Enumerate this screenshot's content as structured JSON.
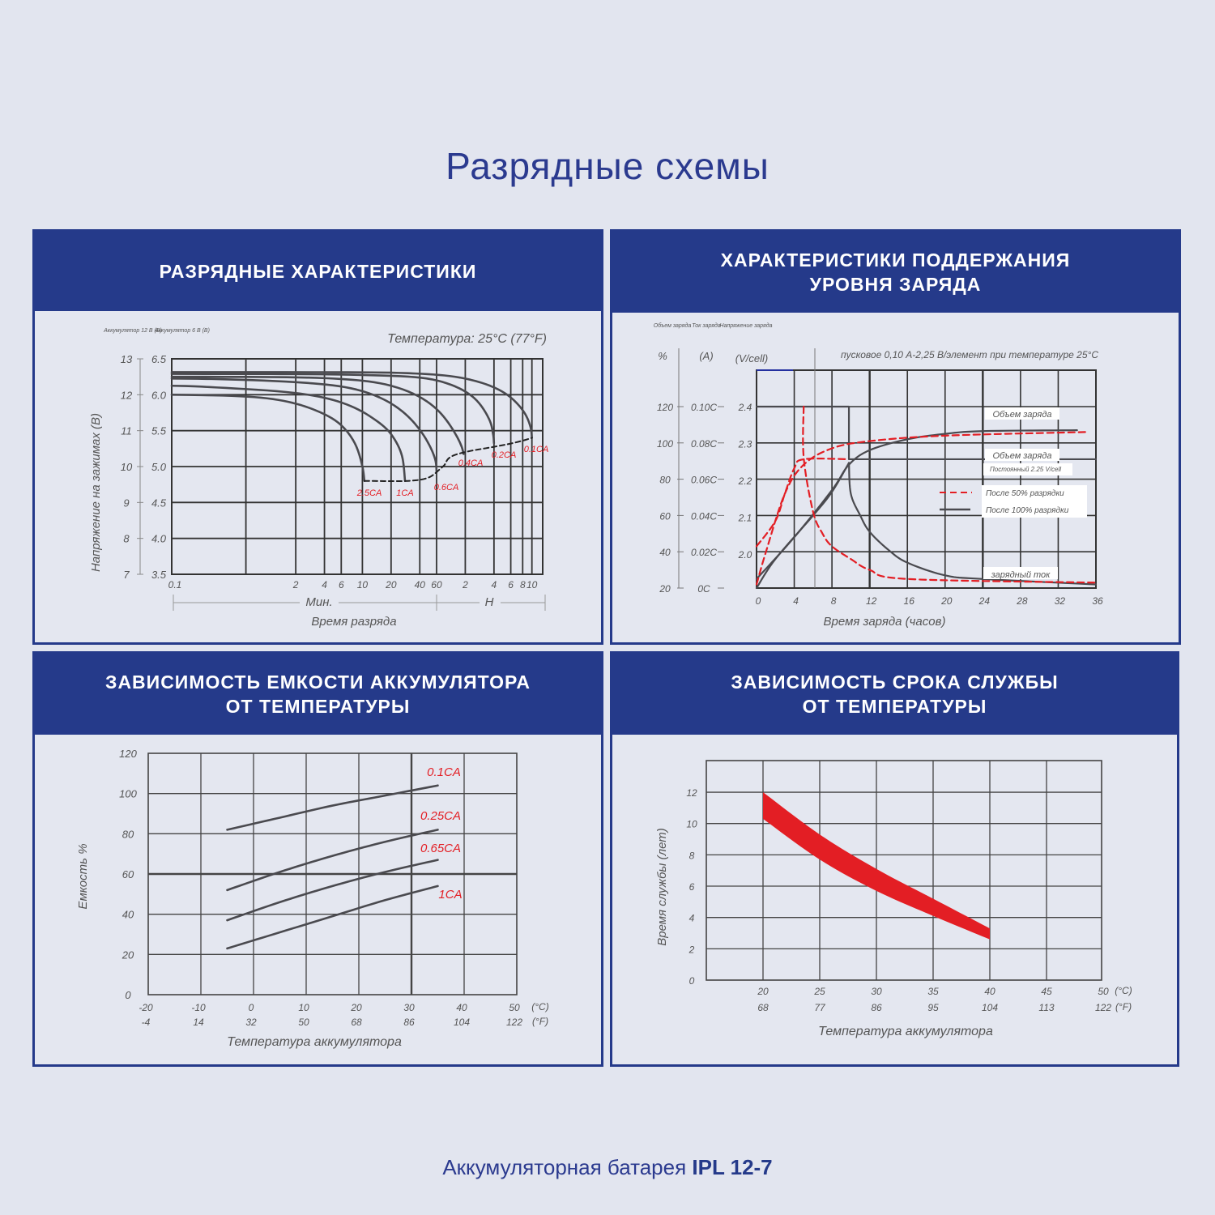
{
  "page_title": "Разрядные схемы",
  "footer": {
    "text": "Аккумуляторная батарея ",
    "model": "IPL 12-7"
  },
  "colors": {
    "brand": "#253a8a",
    "accent_red": "#e31e24",
    "line": "#4a4a4f",
    "background": "#e2e5ef"
  },
  "panels": [
    {
      "title": "РАЗРЯДНЫЕ ХАРАКТЕРИСТИКИ"
    },
    {
      "title": "ХАРАКТЕРИСТИКИ ПОДДЕРЖАНИЯ\nУРОВНЯ ЗАРЯДА"
    },
    {
      "title": "ЗАВИСИМОСТЬ ЕМКОСТИ АККУМУЛЯТОРА\nОТ ТЕМПЕРАТУРЫ"
    },
    {
      "title": "ЗАВИСИМОСТЬ СРОКА СЛУЖБЫ\nОТ ТЕМПЕРАТУРЫ"
    }
  ],
  "chart_data": [
    {
      "type": "line",
      "axis_headers": [
        "Аккумулятор 12 В (В)",
        "Аккумулятор 6 В (В)"
      ],
      "annotation": "Температура: 25°C (77°F)",
      "ylabel": "Напряжение на зажимах (В)",
      "xlabel": "Время разряда",
      "x_scale": "log",
      "x_unit_groups": [
        "Мин.",
        "H"
      ],
      "xlim_minutes": [
        0.1,
        780
      ],
      "x_ticks": [
        {
          "label": "0.1",
          "minutes": 0.1
        },
        {
          "label": "2",
          "minutes": 2
        },
        {
          "label": "4",
          "minutes": 4
        },
        {
          "label": "6",
          "minutes": 6
        },
        {
          "label": "10",
          "minutes": 10
        },
        {
          "label": "20",
          "minutes": 20
        },
        {
          "label": "40",
          "minutes": 40
        },
        {
          "label": "60",
          "minutes": 60
        },
        {
          "label": "2",
          "minutes": 120
        },
        {
          "label": "4",
          "minutes": 240
        },
        {
          "label": "6",
          "minutes": 360
        },
        {
          "label": "8",
          "minutes": 480
        },
        {
          "label": "10",
          "minutes": 600
        }
      ],
      "y_ticks_12v": [
        "13",
        "12",
        "11",
        "10",
        "9",
        "8",
        "7"
      ],
      "y_ticks_6v": [
        "6.5",
        "6.0",
        "5.5",
        "5.0",
        "4.5",
        "4.0",
        "3.5"
      ],
      "ylim": [
        7,
        13
      ],
      "grid": true,
      "series": [
        {
          "name": "2.5CA",
          "points": [
            [
              0.1,
              12.0
            ],
            [
              1,
              11.9
            ],
            [
              3,
              11.6
            ],
            [
              6,
              11.15
            ],
            [
              8.5,
              10.6
            ],
            [
              10,
              10.0
            ],
            [
              10.5,
              9.6
            ]
          ]
        },
        {
          "name": "1CA",
          "points": [
            [
              0.1,
              12.25
            ],
            [
              1,
              12.12
            ],
            [
              5,
              11.85
            ],
            [
              12,
              11.4
            ],
            [
              20,
              10.9
            ],
            [
              26,
              10.3
            ],
            [
              28,
              9.6
            ]
          ]
        },
        {
          "name": "0.6CA",
          "points": [
            [
              0.1,
              12.45
            ],
            [
              2,
              12.35
            ],
            [
              10,
              12.1
            ],
            [
              30,
              11.4
            ],
            [
              48,
              10.7
            ],
            [
              58,
              10.2
            ],
            [
              60,
              9.85
            ]
          ]
        },
        {
          "name": "0.4CA",
          "points": [
            [
              0.1,
              12.5
            ],
            [
              5,
              12.45
            ],
            [
              20,
              12.25
            ],
            [
              60,
              11.6
            ],
            [
              95,
              10.9
            ],
            [
              110,
              10.55
            ],
            [
              115,
              10.35
            ]
          ]
        },
        {
          "name": "0.2CA",
          "points": [
            [
              0.1,
              12.58
            ],
            [
              10,
              12.55
            ],
            [
              60,
              12.4
            ],
            [
              150,
              11.9
            ],
            [
              215,
              11.3
            ],
            [
              235,
              10.9
            ],
            [
              240,
              10.65
            ]
          ]
        },
        {
          "name": "0.1CA",
          "points": [
            [
              0.1,
              12.63
            ],
            [
              30,
              12.6
            ],
            [
              120,
              12.45
            ],
            [
              330,
              12.0
            ],
            [
              500,
              11.5
            ],
            [
              580,
              11.1
            ],
            [
              600,
              10.8
            ]
          ]
        }
      ],
      "cutoff_dashed": [
        [
          10.5,
          9.6
        ],
        [
          30,
          9.6
        ],
        [
          50,
          9.7
        ],
        [
          70,
          10.0
        ],
        [
          100,
          10.35
        ],
        [
          240,
          10.55
        ],
        [
          600,
          10.8
        ]
      ]
    },
    {
      "type": "line",
      "axis_headers": [
        "Объем заряда",
        "Ток заряда",
        "Напряжение заряда"
      ],
      "axis_units": [
        "%",
        "(A)",
        "(V/cell)"
      ],
      "annotation": "пусковое 0,10 А-2,25 В/элемент при температуре 25°C",
      "xlabel": "Время заряда (часов)",
      "xlim": [
        0,
        36
      ],
      "x_ticks": [
        "0",
        "4",
        "8",
        "12",
        "16",
        "20",
        "24",
        "28",
        "32",
        "36"
      ],
      "y_ticks_percent": [
        "120",
        "100",
        "80",
        "60",
        "40",
        "20"
      ],
      "y_ticks_current": [
        "0.10C",
        "0.08C",
        "0.06C",
        "0.04C",
        "0.02C",
        "0C"
      ],
      "y_ticks_voltage": [
        "2.4",
        "2.3",
        "2.2",
        "2.1",
        "2.0"
      ],
      "ylim_percent": [
        20,
        140
      ],
      "grid": true,
      "labels": {
        "charge_volume_1": "Объем заряда",
        "charge_volume_2": "Объем заряда",
        "constant": "Постоянный 2.25 V/cell",
        "charge_current": "зарядный ток"
      },
      "legend": [
        {
          "name": "После 50% разрядки",
          "style": "dashed",
          "color": "#e31e24"
        },
        {
          "name": "После 100% разрядки",
          "style": "solid",
          "color": "#4a4a4f"
        }
      ],
      "series": [
        {
          "group": "После 100% разрядки",
          "quantity": "voltage",
          "points": [
            [
              0,
              120
            ],
            [
              9.8,
              120
            ],
            [
              9.8,
              91
            ],
            [
              36,
              91
            ]
          ]
        },
        {
          "group": "После 100% разрядки",
          "quantity": "charge",
          "points": [
            [
              0,
              25
            ],
            [
              4,
              48
            ],
            [
              8,
              74
            ],
            [
              9.8,
              88
            ],
            [
              12,
              96
            ],
            [
              16,
              102
            ],
            [
              20,
              105
            ],
            [
              24,
              106.5
            ],
            [
              34,
              107
            ]
          ]
        },
        {
          "group": "После 100% разрядки",
          "quantity": "voltage_rise",
          "points": [
            [
              0,
              20
            ],
            [
              2,
              36
            ],
            [
              6,
              60
            ],
            [
              8,
              73
            ],
            [
              9.8,
              89
            ]
          ]
        },
        {
          "group": "После 100% разрядки",
          "quantity": "current",
          "points": [
            [
              9.8,
              89
            ],
            [
              10,
              72
            ],
            [
              11,
              60
            ],
            [
              12,
              51
            ],
            [
              14,
              41
            ],
            [
              16,
              34
            ],
            [
              20,
              27
            ],
            [
              24,
              25
            ],
            [
              36,
              22
            ]
          ]
        },
        {
          "group": "После 50% разрядки",
          "quantity": "charge",
          "points": [
            [
              0,
              22
            ],
            [
              1,
              40
            ],
            [
              3,
              72
            ],
            [
              5,
              88
            ],
            [
              8,
              97
            ],
            [
              12,
              101
            ],
            [
              20,
              104
            ],
            [
              35,
              106
            ]
          ]
        },
        {
          "group": "После 50% разрядки",
          "quantity": "voltage",
          "points": [
            [
              0,
              43
            ],
            [
              2,
              57
            ],
            [
              3,
              72
            ],
            [
              4,
              86
            ],
            [
              5,
              91
            ],
            [
              9.8,
              91
            ]
          ]
        },
        {
          "group": "После 50% разрядки",
          "quantity": "current",
          "points": [
            [
              5,
              120
            ],
            [
              5,
              92
            ],
            [
              6,
              62
            ],
            [
              7,
              50
            ],
            [
              8,
              43
            ],
            [
              10,
              36
            ],
            [
              12,
              30
            ],
            [
              16,
              25
            ],
            [
              36,
              23
            ]
          ]
        }
      ]
    },
    {
      "type": "line",
      "ylabel": "Емкость %",
      "xlabel": "Температура аккумулятора",
      "xlim": [
        -20,
        50
      ],
      "ylim": [
        0,
        120
      ],
      "x_ticks_c": [
        "-20",
        "-10",
        "0",
        "10",
        "20",
        "30",
        "40",
        "50"
      ],
      "x_ticks_f": [
        "-4",
        "14",
        "32",
        "50",
        "68",
        "86",
        "104",
        "122"
      ],
      "x_unit_c": "(°C)",
      "x_unit_f": "(°F)",
      "y_ticks": [
        "120",
        "100",
        "80",
        "60",
        "40",
        "20",
        "0"
      ],
      "grid": true,
      "series": [
        {
          "name": "0.1CA",
          "points": [
            [
              -5,
              82
            ],
            [
              5,
              88
            ],
            [
              15,
              94
            ],
            [
              25,
              99
            ],
            [
              35,
              104
            ]
          ]
        },
        {
          "name": "0.25CA",
          "points": [
            [
              -5,
              52
            ],
            [
              5,
              61
            ],
            [
              15,
              69
            ],
            [
              25,
              76
            ],
            [
              35,
              82
            ]
          ]
        },
        {
          "name": "0.65CA",
          "points": [
            [
              -5,
              37
            ],
            [
              5,
              46
            ],
            [
              15,
              54
            ],
            [
              25,
              61
            ],
            [
              35,
              67
            ]
          ]
        },
        {
          "name": "1CA",
          "points": [
            [
              -5,
              23
            ],
            [
              5,
              31
            ],
            [
              15,
              39
            ],
            [
              25,
              47
            ],
            [
              35,
              54
            ]
          ]
        }
      ]
    },
    {
      "type": "area",
      "ylabel": "Время службы (лет)",
      "xlabel": "Температура аккумулятора",
      "xlim": [
        15,
        50
      ],
      "ylim": [
        0,
        14
      ],
      "x_ticks_c": [
        "20",
        "25",
        "30",
        "35",
        "40",
        "45",
        "50"
      ],
      "x_ticks_f": [
        "68",
        "77",
        "86",
        "95",
        "104",
        "113",
        "122"
      ],
      "x_unit_c": "(°C)",
      "x_unit_f": "(°F)",
      "y_ticks": [
        "12",
        "10",
        "8",
        "6",
        "4",
        "2",
        "0"
      ],
      "grid": true,
      "band": {
        "x": [
          20,
          25,
          30,
          35,
          40
        ],
        "upper": [
          12,
          9.3,
          7.1,
          5.2,
          3.3
        ],
        "lower": [
          10.3,
          7.7,
          5.7,
          4.1,
          2.6
        ]
      }
    }
  ]
}
